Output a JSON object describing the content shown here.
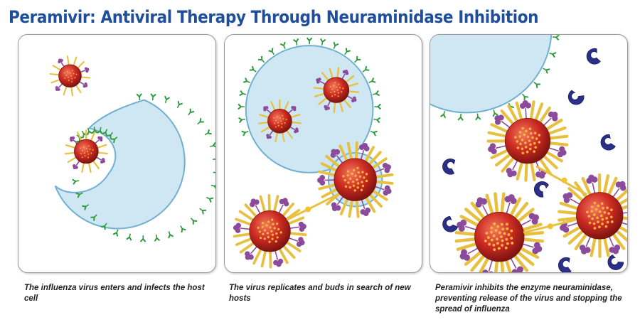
{
  "title": "Peramivir: Antiviral Therapy Through Neuraminidase Inhibition",
  "panels": [
    {
      "caption": "The influenza virus enters and infects the host cell"
    },
    {
      "caption": "The virus replicates and buds in search of new hosts"
    },
    {
      "caption": "Peramivir inhibits the enzyme neuraminidase, preventing release of the virus and stopping the spread of influenza"
    }
  ],
  "colors": {
    "title": "#1f4e9c",
    "cell_fill": "#cfe7f2",
    "cell_edge": "#6fb0d0",
    "virus": "#cc2a22",
    "spike": "#e8c040",
    "neuraminidase": "#8c4a9a",
    "receptor": "#2e9a3e",
    "drug": "#2b2f8a"
  }
}
